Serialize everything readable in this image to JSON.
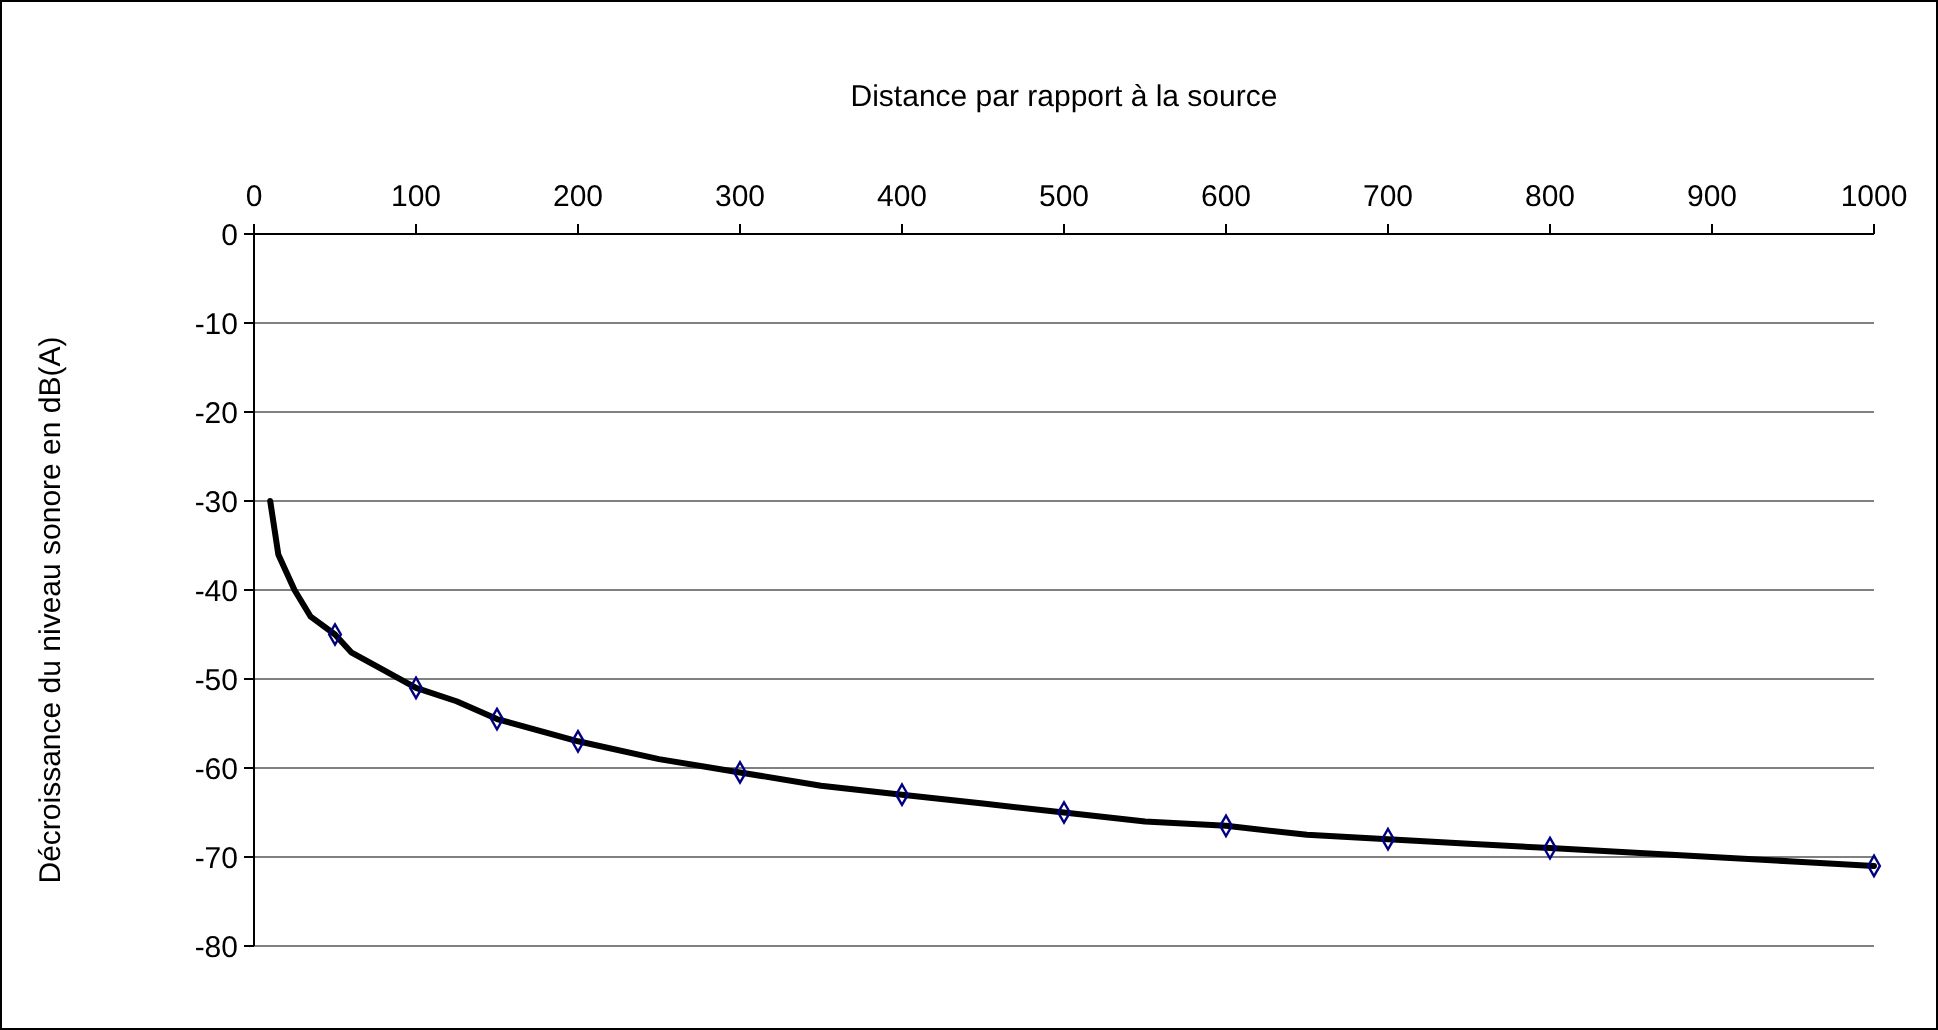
{
  "chart_data": {
    "type": "line",
    "xlabel": "Distance par rapport à la source",
    "ylabel": "Décroissance du niveau sonore en dB(A)",
    "xlim": [
      0,
      1000
    ],
    "xticks": [
      0,
      100,
      200,
      300,
      400,
      500,
      600,
      700,
      800,
      900,
      1000
    ],
    "ylim": [
      -80,
      0
    ],
    "yticks": [
      -80,
      -70,
      -60,
      -50,
      -40,
      -30,
      -20,
      -10,
      0
    ],
    "grid": "y",
    "series": [
      {
        "color": "#000000",
        "marker": "none",
        "x": [
          10,
          15,
          25,
          35,
          50,
          60,
          75,
          100,
          125,
          150,
          200,
          250,
          300,
          350,
          400,
          450,
          500,
          550,
          600,
          650,
          700,
          750,
          800,
          850,
          900,
          950,
          1000
        ],
        "values": [
          -30,
          -36,
          -40,
          -43,
          -45,
          -47,
          -48.5,
          -51,
          -52.5,
          -54.5,
          -57,
          -59,
          -60.5,
          -62,
          -63,
          -64,
          -65,
          -66,
          -66.5,
          -67.5,
          -68,
          -68.5,
          -69,
          -69.5,
          -70,
          -70.5,
          -71
        ]
      },
      {
        "type": "scatter",
        "color": "#000080",
        "marker": "diamond",
        "x": [
          50,
          100,
          150,
          200,
          300,
          400,
          500,
          600,
          700,
          800,
          1000
        ],
        "values": [
          -45,
          -51,
          -54.5,
          -57,
          -60.5,
          -63,
          -65,
          -66.5,
          -68,
          -69,
          -71
        ]
      }
    ]
  }
}
